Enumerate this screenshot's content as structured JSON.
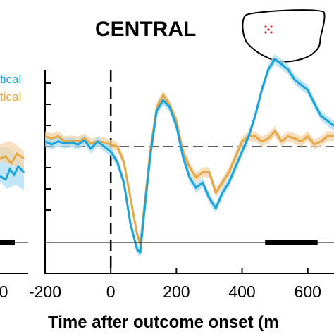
{
  "title": "CENTRAL",
  "xlabel": "Time after outcome onset (m",
  "legend": [
    {
      "label": "tical",
      "color": "#1ba3dc"
    },
    {
      "label": "tical",
      "color": "#e5a84a"
    }
  ],
  "left_panel": {
    "tick_label": "0"
  },
  "head_map": {
    "icon": "scalp-electrode-map-icon",
    "electrode_color": "#d62728"
  },
  "chart_data": {
    "type": "line",
    "title": "CENTRAL",
    "xlabel": "Time after outcome onset (m",
    "ylabel": "",
    "xticks": [
      -200,
      0,
      200,
      400,
      600
    ],
    "xlim": [
      -200,
      680
    ],
    "ylim": [
      -1,
      1
    ],
    "grid": false,
    "legend_position": "top-left",
    "event_line_x": 0,
    "baseline_y": 0,
    "significance_bar": [
      [
        470,
        630
      ]
    ],
    "series": [
      {
        "name": "tical",
        "color": "#1ba3dc",
        "x": [
          -200,
          -180,
          -160,
          -140,
          -120,
          -100,
          -80,
          -60,
          -40,
          -20,
          0,
          20,
          40,
          60,
          80,
          90,
          100,
          120,
          140,
          160,
          180,
          200,
          220,
          240,
          260,
          280,
          300,
          320,
          340,
          360,
          380,
          400,
          420,
          440,
          460,
          480,
          500,
          520,
          540,
          560,
          580,
          600,
          620,
          640,
          660,
          680
        ],
        "y": [
          0.05,
          0.02,
          0.05,
          0.03,
          0.04,
          0.02,
          0.06,
          -0.02,
          0.05,
          0.0,
          -0.05,
          -0.15,
          -0.35,
          -0.75,
          -1.0,
          -1.03,
          -0.7,
          -0.1,
          0.35,
          0.45,
          0.38,
          0.2,
          -0.1,
          -0.3,
          -0.4,
          -0.35,
          -0.5,
          -0.6,
          -0.45,
          -0.35,
          -0.2,
          -0.05,
          0.1,
          0.3,
          0.55,
          0.75,
          0.85,
          0.8,
          0.75,
          0.65,
          0.6,
          0.55,
          0.42,
          0.3,
          0.25,
          0.2
        ]
      },
      {
        "name": "tical",
        "color": "#e5a84a",
        "x": [
          -200,
          -180,
          -160,
          -140,
          -120,
          -100,
          -80,
          -60,
          -40,
          -20,
          0,
          20,
          40,
          60,
          80,
          90,
          100,
          120,
          140,
          160,
          180,
          200,
          220,
          240,
          260,
          280,
          300,
          320,
          340,
          360,
          380,
          400,
          420,
          440,
          460,
          480,
          500,
          520,
          540,
          560,
          580,
          600,
          620,
          640,
          660,
          680
        ],
        "y": [
          0.1,
          0.08,
          0.1,
          0.05,
          0.06,
          0.05,
          0.08,
          0.03,
          0.05,
          0.04,
          0.02,
          0.0,
          -0.15,
          -0.5,
          -0.85,
          -0.95,
          -0.65,
          -0.05,
          0.38,
          0.5,
          0.4,
          0.25,
          -0.05,
          -0.2,
          -0.3,
          -0.25,
          -0.25,
          -0.45,
          -0.35,
          -0.25,
          -0.1,
          0.05,
          0.1,
          0.1,
          0.05,
          0.08,
          0.15,
          0.05,
          0.1,
          0.08,
          0.05,
          0.1,
          0.02,
          0.05,
          0.1,
          0.1
        ]
      }
    ]
  }
}
